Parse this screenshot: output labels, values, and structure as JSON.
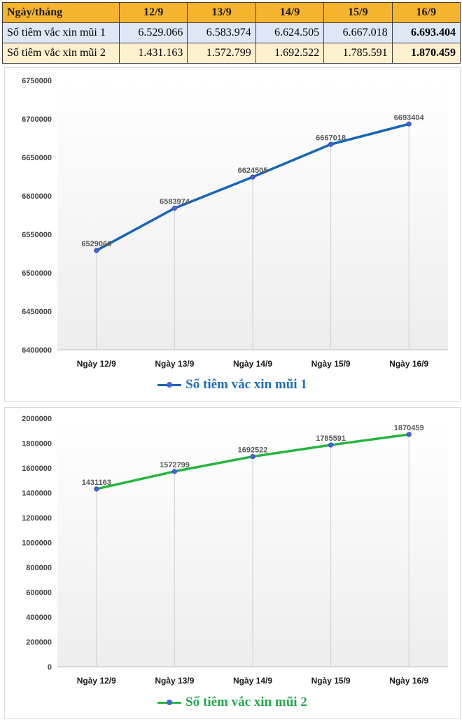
{
  "table": {
    "header": [
      "Ngày/tháng",
      "12/9",
      "13/9",
      "14/9",
      "15/9",
      "16/9"
    ],
    "rows": [
      {
        "label": "Số tiêm vắc xin mũi 1",
        "values": [
          "6.529.066",
          "6.583.974",
          "6.624.505",
          "6.667.018",
          "6.693.404"
        ]
      },
      {
        "label": "Số tiêm vắc xin mũi 2",
        "values": [
          "1.431.163",
          "1.572.799",
          "1.692.522",
          "1.785.591",
          "1.870.459"
        ]
      }
    ]
  },
  "colors": {
    "header_bg": "#f6b32d",
    "row1_bg": "#dde7f6",
    "row2_bg": "#fdf0cf",
    "series1_line": "#1565b8",
    "series2_line": "#25b440",
    "marker": "#4a62d8"
  },
  "chart_data": [
    {
      "type": "line",
      "categories": [
        "Ngày 12/9",
        "Ngày 13/9",
        "Ngày 14/9",
        "Ngày 15/9",
        "Ngày 16/9"
      ],
      "series": [
        {
          "name": "Số tiêm vắc xin mũi 1",
          "values": [
            6529066,
            6583974,
            6624505,
            6667018,
            6693404
          ]
        }
      ],
      "ylim": [
        6400000,
        6750000
      ],
      "yticks": [
        "6400000",
        "6450000",
        "6500000",
        "6550000",
        "6600000",
        "6650000",
        "6700000",
        "6750000"
      ],
      "data_labels": [
        "6529066",
        "6583974",
        "6624505",
        "6667018",
        "6693404"
      ],
      "grid": "vertical drop lines",
      "legend": "bottom"
    },
    {
      "type": "line",
      "categories": [
        "Ngày 12/9",
        "Ngày 13/9",
        "Ngày 14/9",
        "Ngày 15/9",
        "Ngày 16/9"
      ],
      "series": [
        {
          "name": "Số tiêm vắc xin mũi 2",
          "values": [
            1431163,
            1572799,
            1692522,
            1785591,
            1870459
          ]
        }
      ],
      "ylim": [
        0,
        2000000
      ],
      "yticks": [
        "0",
        "200000",
        "400000",
        "600000",
        "800000",
        "1000000",
        "1200000",
        "1400000",
        "1600000",
        "1800000",
        "2000000"
      ],
      "data_labels": [
        "1431163",
        "1572799",
        "1692522",
        "1785591",
        "1870459"
      ],
      "grid": "vertical drop lines",
      "legend": "bottom"
    }
  ]
}
